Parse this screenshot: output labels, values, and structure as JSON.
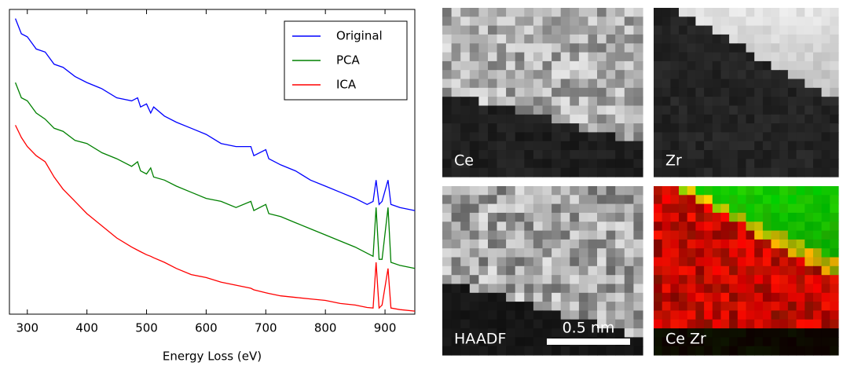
{
  "chart_data": {
    "type": "line",
    "xlabel": "Energy Loss (eV)",
    "x": [
      280,
      290,
      300,
      315,
      330,
      345,
      360,
      380,
      400,
      425,
      450,
      475,
      485,
      490,
      500,
      507,
      512,
      530,
      550,
      575,
      600,
      625,
      650,
      675,
      680,
      700,
      705,
      725,
      750,
      775,
      800,
      825,
      850,
      870,
      880,
      885,
      890,
      895,
      905,
      910,
      925,
      950
    ],
    "series": [
      {
        "name": "Original",
        "color": "#0000ff",
        "values": [
          97,
          92,
          91,
          87,
          86,
          82,
          81,
          78,
          76,
          74,
          71,
          70,
          71,
          68,
          69,
          66,
          68,
          65,
          63,
          61,
          59,
          56,
          55,
          55,
          52,
          54,
          51,
          49,
          47,
          44,
          42,
          40,
          38,
          36,
          37,
          44,
          36,
          37,
          44,
          36,
          35,
          34
        ]
      },
      {
        "name": "PCA",
        "color": "#008000",
        "values": [
          76,
          71,
          70,
          66,
          64,
          61,
          60,
          57,
          56,
          53,
          51,
          48.5,
          50,
          47,
          46,
          48,
          45,
          44,
          42,
          40,
          38,
          37,
          35,
          37,
          34,
          36,
          33,
          32,
          30,
          28,
          26,
          24,
          22,
          20,
          19,
          35,
          18,
          18,
          35,
          17,
          16,
          15
        ]
      },
      {
        "name": "ICA",
        "color": "#ff0000",
        "values": [
          62,
          58,
          55,
          52,
          50,
          45,
          41,
          37,
          33,
          29,
          25,
          22,
          21,
          20.5,
          19.5,
          19,
          18.5,
          17,
          15,
          13,
          12,
          10.5,
          9.5,
          8.5,
          8,
          7,
          6.8,
          6,
          5.5,
          5,
          4.5,
          3.5,
          3,
          2.2,
          2,
          17,
          2,
          3,
          15,
          2,
          1.5,
          1
        ]
      }
    ],
    "xlim": [
      270,
      950
    ],
    "ylim": [
      0,
      100
    ],
    "xticks": [
      300,
      400,
      500,
      600,
      700,
      800,
      900
    ],
    "legend": "upper right"
  },
  "panels": [
    {
      "label": "Ce"
    },
    {
      "label": "Zr"
    },
    {
      "label": "HAADF"
    },
    {
      "label": "Ce Zr"
    }
  ],
  "scale_bar": "0.5 nm"
}
